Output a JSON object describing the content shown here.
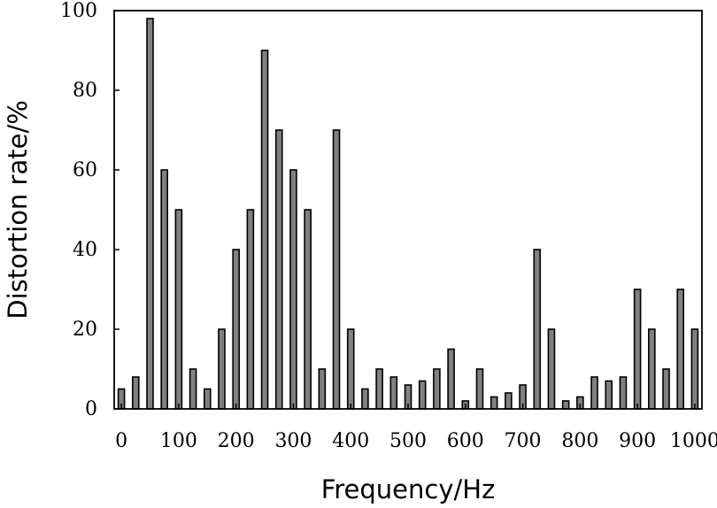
{
  "chart_data": {
    "type": "bar",
    "title": "",
    "xlabel": "Frequency/Hz",
    "ylabel": "Distortion rate/%",
    "xlim": [
      -12.5,
      1012.5
    ],
    "ylim": [
      0,
      100
    ],
    "x_ticks": [
      0,
      100,
      200,
      300,
      400,
      500,
      600,
      700,
      800,
      900,
      1000
    ],
    "y_ticks": [
      0,
      20,
      40,
      60,
      80,
      100
    ],
    "grid": false,
    "legend": "none",
    "bar_color": "#808080",
    "x": [
      0,
      25,
      50,
      75,
      100,
      125,
      150,
      175,
      200,
      225,
      250,
      275,
      300,
      325,
      350,
      375,
      400,
      425,
      450,
      475,
      500,
      525,
      550,
      575,
      600,
      625,
      650,
      675,
      700,
      725,
      750,
      775,
      800,
      825,
      850,
      875,
      900,
      925,
      950,
      975,
      1000
    ],
    "values": [
      5,
      8,
      98,
      60,
      50,
      10,
      5,
      20,
      40,
      50,
      90,
      70,
      60,
      50,
      10,
      70,
      20,
      5,
      10,
      8,
      6,
      7,
      10,
      15,
      2,
      10,
      3,
      4,
      6,
      40,
      20,
      2,
      3,
      8,
      7,
      8,
      30,
      20,
      10,
      30,
      20
    ]
  }
}
